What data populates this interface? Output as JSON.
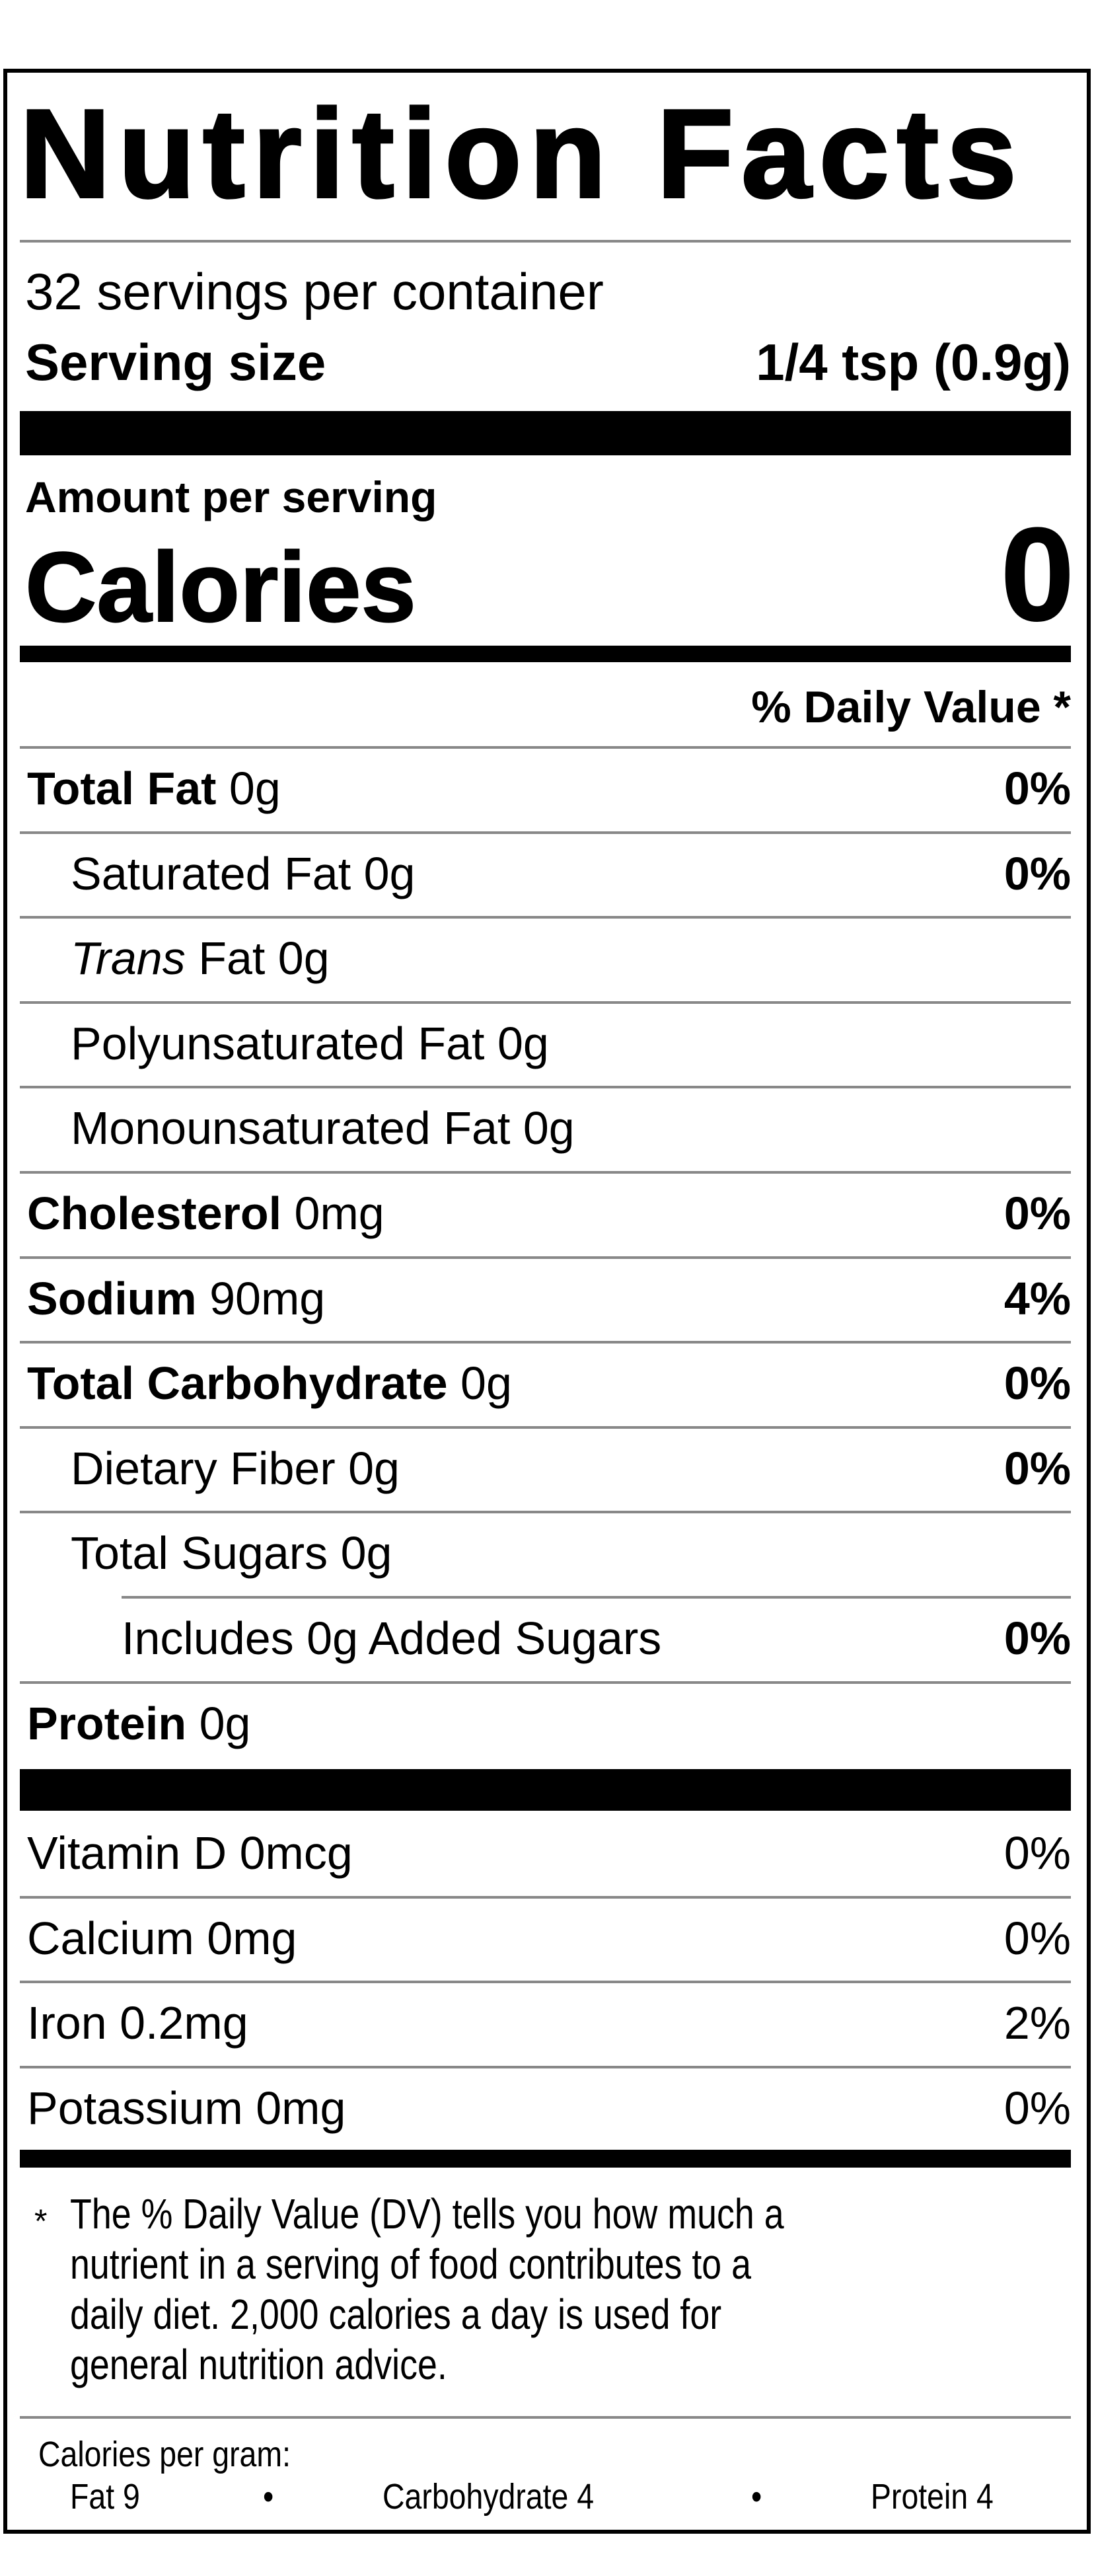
{
  "title": "Nutrition Facts",
  "servings_per_container": "32 servings per container",
  "serving_size_label": "Serving size",
  "serving_size_value": "1/4 tsp (0.9g)",
  "amount_per_serving": "Amount per serving",
  "calories_label": "Calories",
  "calories_value": "0",
  "daily_value_header": "% Daily Value *",
  "nutrients": [
    {
      "label": "Total Fat",
      "amount": "0g",
      "dv": "0%",
      "bold": true,
      "indent": 0
    },
    {
      "label": "Saturated Fat",
      "amount": "0g",
      "dv": "0%",
      "bold": false,
      "indent": 1
    },
    {
      "label_italic": "Trans",
      "label": "Fat",
      "amount": "0g",
      "dv": "",
      "bold": false,
      "indent": 1
    },
    {
      "label": "Polyunsaturated Fat",
      "amount": "0g",
      "dv": "",
      "bold": false,
      "indent": 1
    },
    {
      "label": "Monounsaturated Fat",
      "amount": "0g",
      "dv": "",
      "bold": false,
      "indent": 1
    },
    {
      "label": "Cholesterol",
      "amount": "0mg",
      "dv": "0%",
      "bold": true,
      "indent": 0
    },
    {
      "label": "Sodium",
      "amount": "90mg",
      "dv": "4%",
      "bold": true,
      "indent": 0
    },
    {
      "label": "Total Carbohydrate",
      "amount": "0g",
      "dv": "0%",
      "bold": true,
      "indent": 0
    },
    {
      "label": "Dietary Fiber",
      "amount": "0g",
      "dv": "0%",
      "bold": false,
      "indent": 1
    },
    {
      "label": "Total Sugars",
      "amount": "0g",
      "dv": "",
      "bold": false,
      "indent": 1
    },
    {
      "label": "Includes 0g Added Sugars",
      "amount": "",
      "dv": "0%",
      "bold": false,
      "indent": 2
    },
    {
      "label": "Protein",
      "amount": "0g",
      "dv": "",
      "bold": true,
      "indent": 0
    }
  ],
  "vitamins": [
    {
      "label": "Vitamin D 0mcg",
      "dv": "0%"
    },
    {
      "label": "Calcium 0mg",
      "dv": "0%"
    },
    {
      "label": "Iron 0.2mg",
      "dv": "2%"
    },
    {
      "label": "Potassium 0mg",
      "dv": "0%"
    }
  ],
  "footnote": {
    "asterisk": "*",
    "lines": [
      "The % Daily Value (DV) tells you how much a",
      "nutrient in a serving of food contributes to a",
      "daily diet. 2,000 calories a day is used for",
      "general nutrition advice."
    ]
  },
  "calories_per_gram": {
    "label": "Calories per gram:",
    "fat": "Fat 9",
    "bullet": "•",
    "carbohydrate": "Carbohydrate 4",
    "protein": "Protein 4"
  }
}
